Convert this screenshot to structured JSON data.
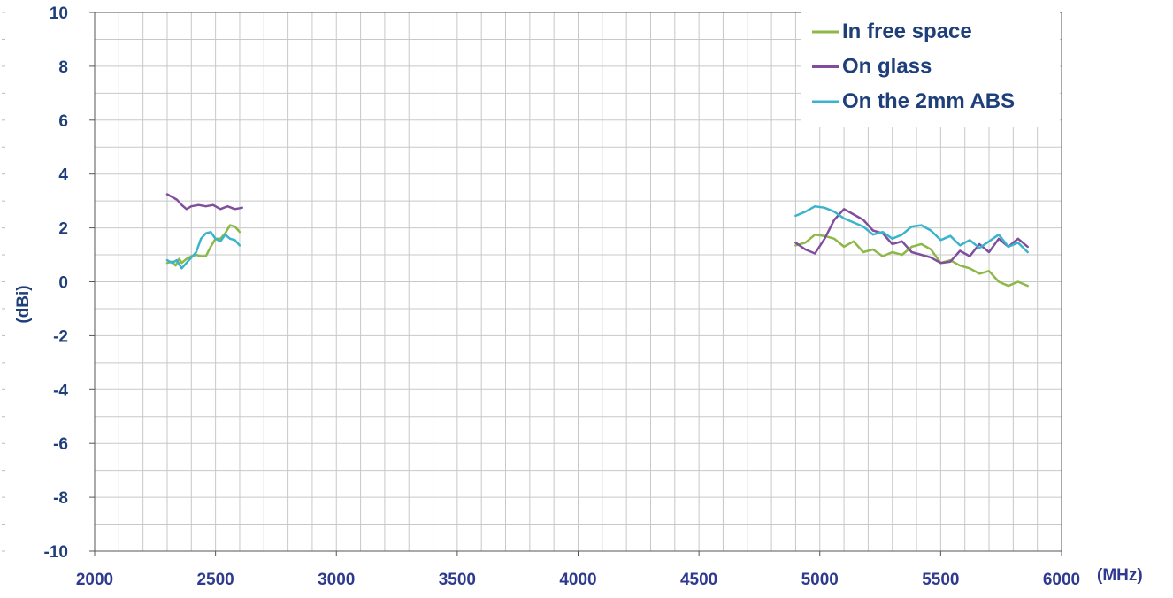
{
  "chart_data": {
    "type": "line",
    "title": "",
    "xlabel": "(MHz)",
    "ylabel": "(dBi)",
    "xlim": [
      2000,
      6000
    ],
    "ylim": [
      -10,
      10
    ],
    "x_ticks": [
      "2000",
      "2500",
      "3000",
      "3500",
      "4000",
      "4500",
      "5000",
      "5500",
      "6000"
    ],
    "y_ticks": [
      "10",
      "8",
      "6",
      "4",
      "2",
      "0",
      "-2",
      "-4",
      "-6",
      "-8",
      "-10"
    ],
    "x_minor_step": 100,
    "y_minor_step": 1,
    "grid": true,
    "legend_position": "top-right",
    "colors": {
      "axis_text": "#1f3f7a",
      "x_tick_text": "#2e3a8f",
      "grid": "#c8c8c8",
      "axis_line": "#555555"
    },
    "series": [
      {
        "name": "In free space",
        "color": "#8db848",
        "segments": [
          {
            "x": [
              2300,
              2320,
              2335,
              2350,
              2360,
              2380,
              2400,
              2420,
              2440,
              2460,
              2480,
              2500,
              2520,
              2540,
              2560,
              2580,
              2600
            ],
            "y": [
              0.7,
              0.75,
              0.6,
              0.85,
              0.7,
              0.85,
              0.95,
              1.0,
              0.95,
              0.95,
              1.3,
              1.6,
              1.6,
              1.8,
              2.1,
              2.05,
              1.85
            ]
          },
          {
            "x": [
              4900,
              4940,
              4980,
              5020,
              5060,
              5100,
              5140,
              5180,
              5220,
              5260,
              5300,
              5340,
              5380,
              5420,
              5460,
              5500,
              5540,
              5580,
              5620,
              5660,
              5700,
              5740,
              5780,
              5820,
              5860
            ],
            "y": [
              1.35,
              1.45,
              1.75,
              1.7,
              1.6,
              1.3,
              1.5,
              1.1,
              1.2,
              0.95,
              1.1,
              1.0,
              1.3,
              1.4,
              1.2,
              0.7,
              0.8,
              0.6,
              0.5,
              0.3,
              0.4,
              0.0,
              -0.15,
              0.0,
              -0.15
            ]
          }
        ]
      },
      {
        "name": "On glass",
        "color": "#7f4f9d",
        "segments": [
          {
            "x": [
              2300,
              2320,
              2340,
              2360,
              2380,
              2400,
              2430,
              2460,
              2490,
              2520,
              2550,
              2580,
              2610
            ],
            "y": [
              3.25,
              3.15,
              3.05,
              2.85,
              2.7,
              2.8,
              2.85,
              2.8,
              2.85,
              2.7,
              2.8,
              2.7,
              2.75
            ]
          },
          {
            "x": [
              4900,
              4940,
              4980,
              5020,
              5060,
              5100,
              5140,
              5180,
              5220,
              5260,
              5300,
              5340,
              5380,
              5420,
              5460,
              5500,
              5540,
              5580,
              5620,
              5660,
              5700,
              5740,
              5780,
              5820,
              5860
            ],
            "y": [
              1.45,
              1.2,
              1.05,
              1.6,
              2.3,
              2.7,
              2.5,
              2.3,
              1.9,
              1.8,
              1.4,
              1.5,
              1.1,
              1.0,
              0.9,
              0.7,
              0.75,
              1.15,
              0.95,
              1.4,
              1.1,
              1.6,
              1.3,
              1.6,
              1.3
            ]
          }
        ]
      },
      {
        "name": "On the 2mm ABS",
        "color": "#3ab3cc",
        "segments": [
          {
            "x": [
              2300,
              2320,
              2340,
              2360,
              2380,
              2400,
              2420,
              2440,
              2460,
              2480,
              2500,
              2520,
              2540,
              2560,
              2580,
              2600
            ],
            "y": [
              0.8,
              0.7,
              0.8,
              0.5,
              0.7,
              0.9,
              1.1,
              1.6,
              1.8,
              1.85,
              1.6,
              1.5,
              1.75,
              1.6,
              1.55,
              1.35
            ]
          },
          {
            "x": [
              4900,
              4940,
              4980,
              5020,
              5060,
              5100,
              5140,
              5180,
              5220,
              5260,
              5300,
              5340,
              5380,
              5420,
              5460,
              5500,
              5540,
              5580,
              5620,
              5660,
              5700,
              5740,
              5780,
              5820,
              5860
            ],
            "y": [
              2.45,
              2.6,
              2.8,
              2.75,
              2.6,
              2.35,
              2.2,
              2.05,
              1.75,
              1.85,
              1.6,
              1.75,
              2.05,
              2.1,
              1.9,
              1.55,
              1.7,
              1.35,
              1.55,
              1.25,
              1.5,
              1.75,
              1.3,
              1.45,
              1.1
            ]
          }
        ]
      }
    ]
  }
}
